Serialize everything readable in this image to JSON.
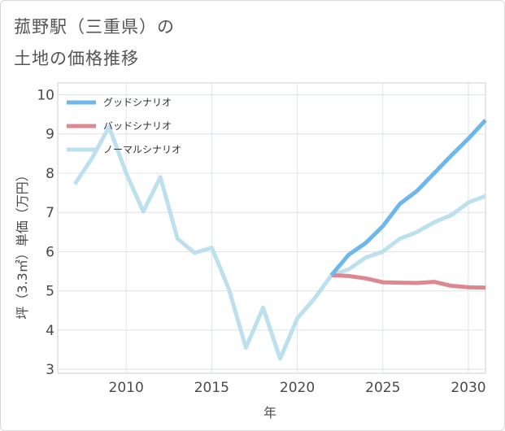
{
  "title_line1": "菰野駅（三重県）の",
  "title_line2": "土地の価格推移",
  "chart_data": {
    "type": "line",
    "xlabel": "年",
    "ylabel": "坪（3.3㎡）単価（万円）",
    "xlim": [
      2006,
      2031
    ],
    "ylim": [
      2.9,
      10.3
    ],
    "xticks": [
      2010,
      2015,
      2020,
      2025,
      2030
    ],
    "yticks": [
      3,
      4,
      5,
      6,
      7,
      8,
      9,
      10
    ],
    "grid": true,
    "legend_position": "top-left",
    "series": [
      {
        "name": "グッドシナリオ",
        "color": "#6cb8ec",
        "x": [
          2022,
          2023,
          2024,
          2025,
          2026,
          2027,
          2028,
          2029,
          2030,
          2031
        ],
        "values": [
          5.4,
          5.92,
          6.22,
          6.65,
          7.22,
          7.55,
          8.0,
          8.45,
          8.88,
          9.35
        ]
      },
      {
        "name": "バッドシナリオ",
        "color": "#df8791",
        "x": [
          2022,
          2023,
          2024,
          2025,
          2026,
          2027,
          2028,
          2029,
          2030,
          2031
        ],
        "values": [
          5.4,
          5.38,
          5.32,
          5.22,
          5.21,
          5.2,
          5.23,
          5.13,
          5.09,
          5.08
        ]
      },
      {
        "name": "ノーマルシナリオ",
        "color": "#bde0ee",
        "x": [
          2007,
          2008,
          2009,
          2010,
          2011,
          2012,
          2013,
          2014,
          2015,
          2016,
          2017,
          2018,
          2019,
          2020,
          2021,
          2022,
          2023,
          2024,
          2025,
          2026,
          2027,
          2028,
          2029,
          2030,
          2031
        ],
        "values": [
          7.72,
          8.38,
          9.18,
          8.0,
          7.02,
          7.9,
          6.33,
          5.97,
          6.1,
          5.05,
          3.55,
          4.57,
          3.27,
          4.3,
          4.8,
          5.4,
          5.55,
          5.85,
          6.0,
          6.33,
          6.5,
          6.75,
          6.93,
          7.25,
          7.42
        ]
      }
    ]
  }
}
